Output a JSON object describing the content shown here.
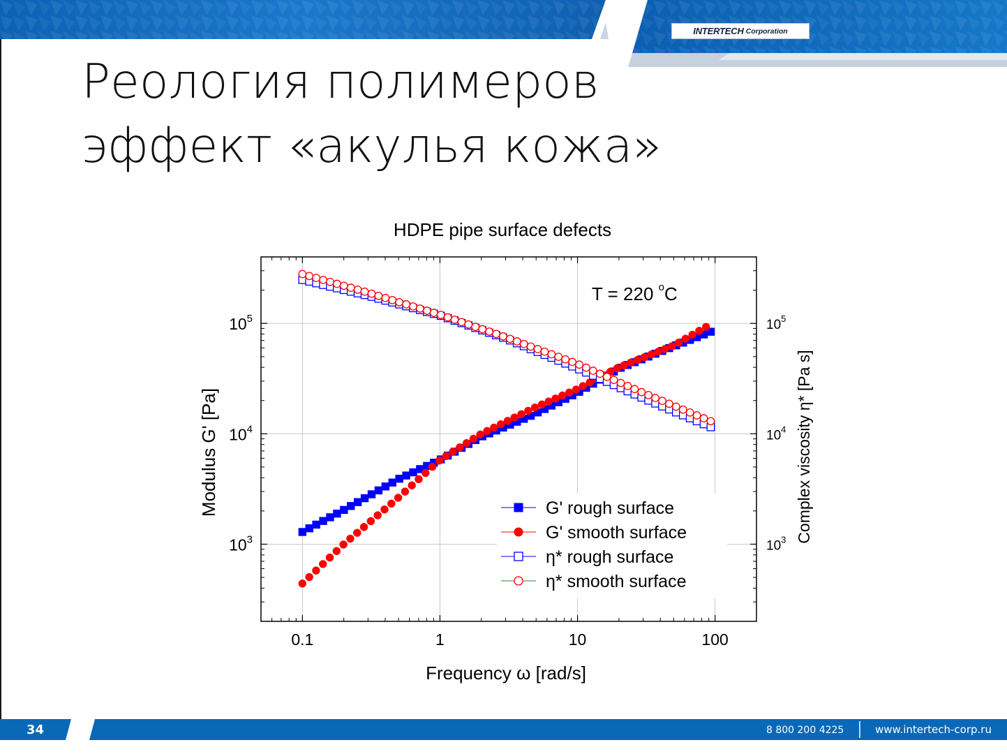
{
  "slide": {
    "title_line1": "Реология полимеров",
    "title_line2": "эффект «акулья кожа»",
    "logo_main": "INTERTECH",
    "logo_sub": "Corporation",
    "page_number": "34",
    "phone": "8 800 200 4225",
    "website": "www.intertech-corp.ru",
    "brand_color": "#0a68b8"
  },
  "chart_data": {
    "type": "scatter",
    "title": "HDPE pipe surface defects",
    "annotation": {
      "prefix": "T = 220 ",
      "sup": "o",
      "suffix": "C"
    },
    "xlabel": "Frequency ω [rad/s]",
    "ylabel_left": "Modulus G' [Pa]",
    "ylabel_right": "Complex viscosity η* [Pa s]",
    "x_scale": "log",
    "y_scale": "log",
    "xlim": [
      0.05,
      200
    ],
    "ylim_left": [
      200,
      400000
    ],
    "ylim_right": [
      200,
      400000
    ],
    "grid": true,
    "legend_position": "lower-right",
    "x_ticks": [
      {
        "value": 0.1,
        "label": "0.1"
      },
      {
        "value": 1,
        "label": "1"
      },
      {
        "value": 10,
        "label": "10"
      },
      {
        "value": 100,
        "label": "100"
      }
    ],
    "y_ticks_left": [
      {
        "value": 1000,
        "base": "10",
        "exp": "3"
      },
      {
        "value": 10000,
        "base": "10",
        "exp": "4"
      },
      {
        "value": 100000,
        "base": "10",
        "exp": "5"
      }
    ],
    "y_ticks_right": [
      {
        "value": 1000,
        "base": "10",
        "exp": "3"
      },
      {
        "value": 10000,
        "base": "10",
        "exp": "4"
      },
      {
        "value": 100000,
        "base": "10",
        "exp": "5"
      }
    ],
    "series": [
      {
        "name": "G' rough surface",
        "color": "#0000ff",
        "marker": "square",
        "filled": true,
        "axis": "left",
        "points": [
          [
            0.1,
            1290
          ],
          [
            0.2,
            2040
          ],
          [
            0.5,
            3890
          ],
          [
            1,
            5800
          ],
          [
            2,
            9400
          ],
          [
            4.5,
            14400
          ],
          [
            10,
            23500
          ],
          [
            20,
            39000
          ],
          [
            50,
            62000
          ],
          [
            93,
            84000
          ]
        ]
      },
      {
        "name": "G' smooth surface",
        "color": "#ff0000",
        "marker": "circle",
        "filled": true,
        "axis": "left",
        "points": [
          [
            0.1,
            440
          ],
          [
            0.2,
            1000
          ],
          [
            0.5,
            2650
          ],
          [
            1,
            5800
          ],
          [
            2,
            10000
          ],
          [
            5,
            17500
          ],
          [
            10,
            25500
          ],
          [
            20,
            40000
          ],
          [
            50,
            63000
          ],
          [
            86,
            93000
          ]
        ]
      },
      {
        "name": "η* rough surface",
        "color": "#0000ff",
        "marker": "square",
        "filled": false,
        "axis": "right",
        "points": [
          [
            0.1,
            248000
          ],
          [
            0.3,
            178000
          ],
          [
            1,
            118000
          ],
          [
            3,
            73000
          ],
          [
            10,
            39000
          ],
          [
            30,
            21000
          ],
          [
            93,
            11500
          ]
        ]
      },
      {
        "name": "η* smooth surface",
        "color": "#ff0000",
        "marker": "circle",
        "filled": false,
        "axis": "right",
        "points": [
          [
            0.1,
            280000
          ],
          [
            0.3,
            190000
          ],
          [
            1,
            120000
          ],
          [
            3,
            75000
          ],
          [
            10,
            43000
          ],
          [
            30,
            23500
          ],
          [
            93,
            13000
          ]
        ]
      }
    ]
  }
}
